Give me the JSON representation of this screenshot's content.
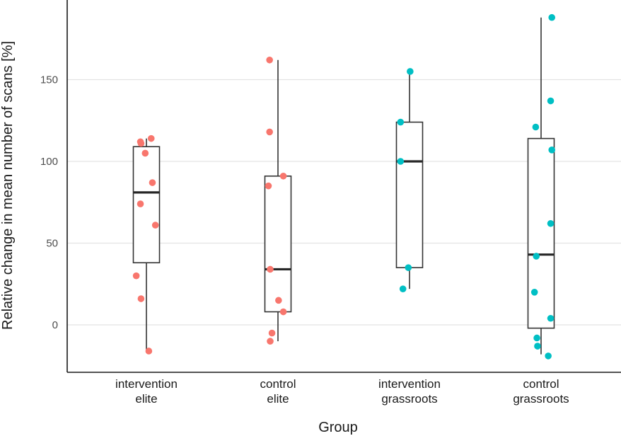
{
  "chart_data": {
    "type": "box",
    "xlabel": "Group",
    "ylabel": "Relative change in mean number of scans [%]",
    "ylim": [
      -29,
      198
    ],
    "yticks": [
      0,
      50,
      100,
      150
    ],
    "grid": "horizontal",
    "legend": "none",
    "groups": [
      {
        "label": [
          "intervention",
          "elite"
        ],
        "color": "#F8766D",
        "box": {
          "min": -16,
          "q1": 38,
          "median": 81,
          "q3": 109,
          "max": 114
        },
        "points": [
          {
            "x": -0.17,
            "y": 30
          },
          {
            "x": -0.09,
            "y": 16
          },
          {
            "x": -0.1,
            "y": 74
          },
          {
            "x": -0.09,
            "y": 111
          },
          {
            "x": -0.1,
            "y": 112
          },
          {
            "x": -0.02,
            "y": 105
          },
          {
            "x": 0.08,
            "y": 114
          },
          {
            "x": 0.1,
            "y": 87
          },
          {
            "x": 0.15,
            "y": 61
          },
          {
            "x": 0.04,
            "y": -16
          }
        ]
      },
      {
        "label": [
          "control",
          "elite"
        ],
        "color": "#F8766D",
        "box": {
          "min": -10,
          "q1": 8,
          "median": 34,
          "q3": 91,
          "max": 162
        },
        "points": [
          {
            "x": -0.14,
            "y": 162
          },
          {
            "x": -0.14,
            "y": 118
          },
          {
            "x": -0.16,
            "y": 85
          },
          {
            "x": 0.09,
            "y": 91
          },
          {
            "x": -0.13,
            "y": 34
          },
          {
            "x": 0.01,
            "y": 15
          },
          {
            "x": 0.09,
            "y": 8
          },
          {
            "x": -0.1,
            "y": -5
          },
          {
            "x": -0.13,
            "y": -10
          }
        ]
      },
      {
        "label": [
          "intervention",
          "grassroots"
        ],
        "color": "#00BFC4",
        "box": {
          "min": 22,
          "q1": 35,
          "median": 100,
          "q3": 124,
          "max": 155
        },
        "points": [
          {
            "x": 0.01,
            "y": 155
          },
          {
            "x": -0.15,
            "y": 124
          },
          {
            "x": -0.15,
            "y": 100
          },
          {
            "x": -0.02,
            "y": 35
          },
          {
            "x": -0.11,
            "y": 22
          }
        ]
      },
      {
        "label": [
          "control",
          "grassroots"
        ],
        "color": "#00BFC4",
        "box": {
          "min": -18,
          "q1": -2,
          "median": 43,
          "q3": 114,
          "max": 188
        },
        "points": [
          {
            "x": 0.18,
            "y": 188
          },
          {
            "x": 0.16,
            "y": 137
          },
          {
            "x": -0.09,
            "y": 121
          },
          {
            "x": 0.18,
            "y": 107
          },
          {
            "x": 0.16,
            "y": 62
          },
          {
            "x": -0.08,
            "y": 42
          },
          {
            "x": -0.11,
            "y": 20
          },
          {
            "x": 0.16,
            "y": 4
          },
          {
            "x": -0.07,
            "y": -8
          },
          {
            "x": -0.06,
            "y": -13
          },
          {
            "x": 0.12,
            "y": -19
          }
        ]
      }
    ]
  }
}
